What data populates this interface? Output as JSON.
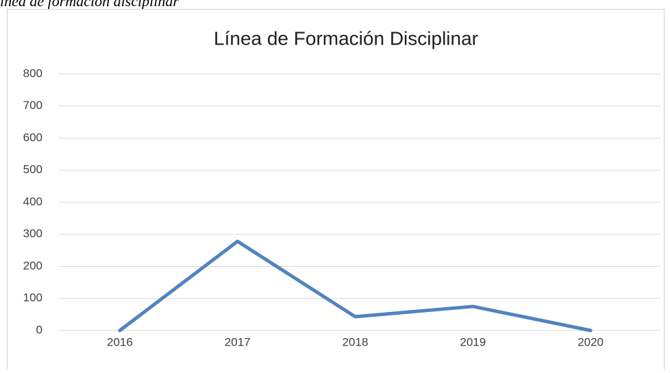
{
  "caption": "ínea de formación disciplinar",
  "chart_data": {
    "type": "line",
    "title": "Línea de Formación Disciplinar",
    "categories": [
      "2016",
      "2017",
      "2018",
      "2019",
      "2020"
    ],
    "values": [
      0,
      278,
      43,
      75,
      0
    ],
    "color": "#5283bf",
    "ylim": [
      0,
      800
    ],
    "yticks": [
      0,
      100,
      200,
      300,
      400,
      500,
      600,
      700,
      800
    ],
    "grid": true
  }
}
